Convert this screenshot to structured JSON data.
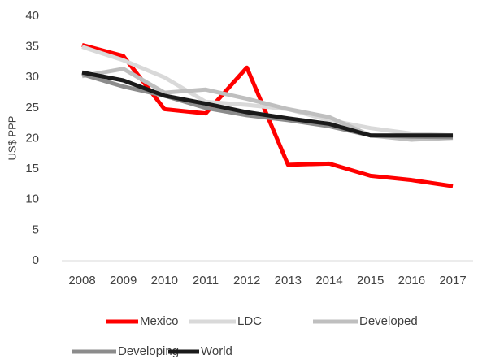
{
  "chart_data": {
    "type": "line",
    "y_label": "US$ PPP",
    "categories": [
      "2008",
      "2009",
      "2010",
      "2011",
      "2012",
      "2013",
      "2014",
      "2015",
      "2016",
      "2017"
    ],
    "series": [
      {
        "name": "Mexico",
        "color": "#ff0000",
        "values": [
          35.3,
          33.5,
          24.8,
          24.1,
          31.6,
          15.7,
          15.9,
          13.9,
          13.2,
          12.2
        ]
      },
      {
        "name": "LDC",
        "color": "#d9d9d9",
        "values": [
          35.0,
          32.8,
          30.0,
          26.0,
          25.5,
          24.8,
          23.0,
          21.7,
          20.8,
          20.5
        ]
      },
      {
        "name": "Developed",
        "color": "#bfbfbf",
        "values": [
          30.2,
          31.4,
          27.5,
          28.0,
          26.5,
          24.8,
          23.5,
          20.5,
          19.8,
          20.1
        ]
      },
      {
        "name": "Developing",
        "color": "#8c8c8c",
        "values": [
          30.5,
          28.5,
          27.0,
          25.0,
          23.8,
          23.0,
          22.0,
          20.5,
          20.3,
          20.2
        ]
      },
      {
        "name": "World",
        "color": "#1a1a1a",
        "values": [
          30.8,
          29.5,
          27.0,
          25.7,
          24.3,
          23.3,
          22.4,
          20.5,
          20.5,
          20.5
        ]
      }
    ],
    "ylim": [
      0,
      40
    ],
    "yticks": [
      0,
      5,
      10,
      15,
      20,
      25,
      30,
      35,
      40
    ],
    "grid": false,
    "legend": "bottom"
  }
}
